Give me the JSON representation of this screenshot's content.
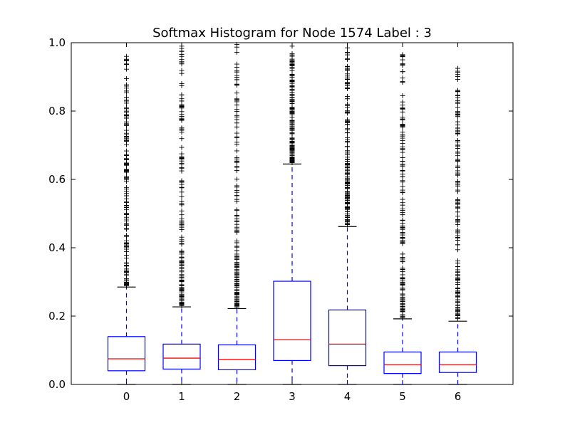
{
  "chart_data": {
    "type": "box",
    "title": "Softmax Histogram for Node 1574 Label : 3",
    "xlabel": "",
    "ylabel": "",
    "ylim": [
      0.0,
      1.0
    ],
    "yticks": [
      "0.0",
      "0.2",
      "0.4",
      "0.6",
      "0.8",
      "1.0"
    ],
    "categories": [
      "0",
      "1",
      "2",
      "3",
      "4",
      "5",
      "6"
    ],
    "boxes": [
      {
        "label": "0",
        "whisker_low": 0.0,
        "q1": 0.04,
        "median": 0.075,
        "q3": 0.14,
        "whisker_high": 0.285,
        "flier_max": 0.96
      },
      {
        "label": "1",
        "whisker_low": 0.0,
        "q1": 0.045,
        "median": 0.077,
        "q3": 0.118,
        "whisker_high": 0.227,
        "flier_max": 0.99
      },
      {
        "label": "2",
        "whisker_low": 0.0,
        "q1": 0.043,
        "median": 0.073,
        "q3": 0.116,
        "whisker_high": 0.222,
        "flier_max": 0.995
      },
      {
        "label": "3",
        "whisker_low": 0.0,
        "q1": 0.07,
        "median": 0.131,
        "q3": 0.302,
        "whisker_high": 0.645,
        "flier_max": 0.99
      },
      {
        "label": "4",
        "whisker_low": 0.0,
        "q1": 0.055,
        "median": 0.118,
        "q3": 0.218,
        "whisker_high": 0.462,
        "flier_max": 0.985
      },
      {
        "label": "5",
        "whisker_low": 0.0,
        "q1": 0.032,
        "median": 0.058,
        "q3": 0.095,
        "whisker_high": 0.192,
        "flier_max": 0.965
      },
      {
        "label": "6",
        "whisker_low": 0.0,
        "q1": 0.035,
        "median": 0.058,
        "q3": 0.095,
        "whisker_high": 0.185,
        "flier_max": 0.925
      }
    ],
    "colors": {
      "box": "#0000ff",
      "median": "#ff0000",
      "flier": "#000000",
      "whisker_cap": "#000000"
    },
    "grid": false,
    "legend": "none"
  }
}
